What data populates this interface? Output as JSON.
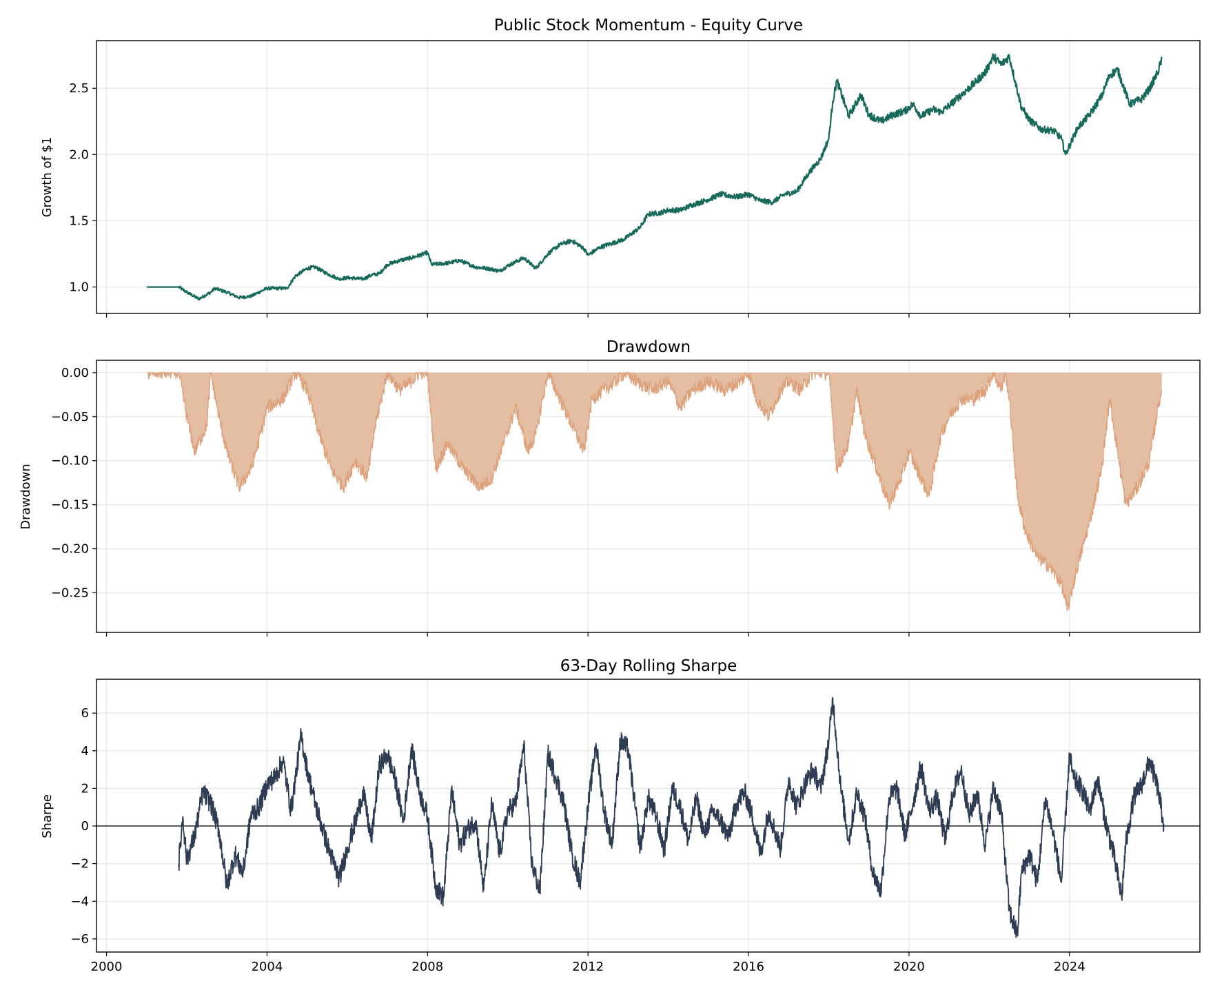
{
  "colors": {
    "equity_line": "#17695a",
    "drawdown_fill": "#e3bea3",
    "drawdown_line": "#dda27c",
    "sharpe_line": "#2d3c52",
    "zero_line": "#000000",
    "grid": "#e6e6e6"
  },
  "chart_data": [
    {
      "type": "line",
      "title": "Public Stock Momentum - Equity Curve",
      "xlabel": "",
      "ylabel": "Growth of $1",
      "xlim": [
        1999.75,
        2027.25
      ],
      "ylim": [
        0.8,
        2.86
      ],
      "grid": true,
      "x_tick_values": [
        2000,
        2004,
        2008,
        2012,
        2016,
        2020,
        2024
      ],
      "x_tick_labels": [
        "",
        "",
        "",
        "",
        "",
        "",
        ""
      ],
      "y_ticks": [
        1.0,
        1.5,
        2.0,
        2.5
      ],
      "y_tick_labels": [
        "1.0",
        "1.5",
        "2.0",
        "2.5"
      ],
      "series": [
        {
          "x": [
            2001.0,
            2001.8,
            2002.0,
            2002.3,
            2002.6,
            2002.7,
            2003.0,
            2003.3,
            2003.6,
            2004.0,
            2004.5,
            2004.7,
            2005.0,
            2005.2,
            2005.5,
            2005.8,
            2006.0,
            2006.4,
            2006.6,
            2006.8,
            2007.0,
            2007.3,
            2007.6,
            2008.0,
            2008.1,
            2008.5,
            2008.8,
            2009.2,
            2009.5,
            2009.8,
            2010.0,
            2010.4,
            2010.7,
            2011.0,
            2011.3,
            2011.6,
            2011.9,
            2012.0,
            2012.3,
            2012.6,
            2012.9,
            2013.3,
            2013.5,
            2013.8,
            2014.0,
            2014.3,
            2014.6,
            2015.0,
            2015.3,
            2015.7,
            2016.0,
            2016.3,
            2016.6,
            2016.9,
            2017.2,
            2017.5,
            2017.8,
            2018.0,
            2018.1,
            2018.2,
            2018.5,
            2018.8,
            2019.0,
            2019.3,
            2019.6,
            2019.9,
            2020.1,
            2020.3,
            2020.6,
            2020.8,
            2021.0,
            2021.3,
            2021.6,
            2021.9,
            2022.1,
            2022.3,
            2022.5,
            2022.8,
            2023.0,
            2023.3,
            2023.6,
            2023.8,
            2023.9,
            2024.2,
            2024.5,
            2024.8,
            2025.0,
            2025.2,
            2025.5,
            2025.8,
            2026.0,
            2026.2,
            2026.3
          ],
          "y": [
            1.0,
            1.0,
            0.96,
            0.91,
            0.96,
            0.99,
            0.96,
            0.92,
            0.93,
            0.99,
            0.99,
            1.08,
            1.14,
            1.15,
            1.1,
            1.06,
            1.07,
            1.06,
            1.09,
            1.1,
            1.17,
            1.2,
            1.22,
            1.26,
            1.17,
            1.18,
            1.2,
            1.15,
            1.14,
            1.12,
            1.16,
            1.22,
            1.14,
            1.25,
            1.32,
            1.35,
            1.29,
            1.24,
            1.3,
            1.33,
            1.36,
            1.45,
            1.55,
            1.56,
            1.58,
            1.58,
            1.62,
            1.66,
            1.7,
            1.68,
            1.7,
            1.65,
            1.64,
            1.7,
            1.72,
            1.86,
            1.97,
            2.12,
            2.4,
            2.56,
            2.29,
            2.45,
            2.3,
            2.25,
            2.3,
            2.33,
            2.38,
            2.29,
            2.34,
            2.32,
            2.37,
            2.45,
            2.53,
            2.62,
            2.74,
            2.68,
            2.74,
            2.36,
            2.26,
            2.19,
            2.18,
            2.12,
            2.0,
            2.2,
            2.3,
            2.44,
            2.6,
            2.64,
            2.38,
            2.42,
            2.5,
            2.62,
            2.72
          ]
        }
      ]
    },
    {
      "type": "area",
      "title": "Drawdown",
      "xlabel": "",
      "ylabel": "Drawdown",
      "xlim": [
        1999.75,
        2027.25
      ],
      "ylim": [
        -0.295,
        0.014
      ],
      "grid": true,
      "x_tick_values": [
        2000,
        2004,
        2008,
        2012,
        2016,
        2020,
        2024
      ],
      "x_tick_labels": [
        "",
        "",
        "",
        "",
        "",
        "",
        ""
      ],
      "y_ticks": [
        0.0,
        -0.05,
        -0.1,
        -0.15,
        -0.2,
        -0.25
      ],
      "y_tick_labels": [
        "0.00",
        "−0.05",
        "−0.10",
        "−0.15",
        "−0.20",
        "−0.25"
      ],
      "series": [
        {
          "x": [
            2001.0,
            2001.8,
            2002.0,
            2002.2,
            2002.5,
            2002.6,
            2002.8,
            2003.0,
            2003.3,
            2003.6,
            2003.9,
            2004.0,
            2004.4,
            2004.7,
            2004.8,
            2005.0,
            2005.3,
            2005.6,
            2005.9,
            2006.2,
            2006.5,
            2006.7,
            2006.9,
            2007.0,
            2007.3,
            2007.6,
            2007.8,
            2008.0,
            2008.2,
            2008.5,
            2008.9,
            2009.3,
            2009.6,
            2009.9,
            2010.2,
            2010.5,
            2010.7,
            2011.0,
            2011.3,
            2011.6,
            2011.9,
            2012.1,
            2012.4,
            2012.7,
            2012.9,
            2013.2,
            2013.6,
            2014.0,
            2014.3,
            2014.6,
            2015.0,
            2015.4,
            2015.8,
            2016.0,
            2016.2,
            2016.5,
            2016.8,
            2017.0,
            2017.3,
            2017.6,
            2017.9,
            2018.0,
            2018.2,
            2018.5,
            2018.7,
            2018.9,
            2019.2,
            2019.5,
            2019.8,
            2020.0,
            2020.2,
            2020.5,
            2020.8,
            2021.0,
            2021.3,
            2021.6,
            2021.9,
            2022.1,
            2022.3,
            2022.4,
            2022.5,
            2022.7,
            2022.9,
            2023.2,
            2023.5,
            2023.8,
            2023.95,
            2024.2,
            2024.5,
            2024.8,
            2025.0,
            2025.2,
            2025.4,
            2025.7,
            2026.0,
            2026.2,
            2026.3
          ],
          "y": [
            0.0,
            0.0,
            -0.05,
            -0.09,
            -0.06,
            0.0,
            -0.05,
            -0.09,
            -0.13,
            -0.11,
            -0.06,
            -0.04,
            -0.03,
            0.0,
            -0.005,
            -0.02,
            -0.07,
            -0.11,
            -0.13,
            -0.1,
            -0.12,
            -0.06,
            -0.02,
            0.0,
            -0.02,
            -0.01,
            0.0,
            0.0,
            -0.11,
            -0.08,
            -0.11,
            -0.13,
            -0.12,
            -0.08,
            -0.04,
            -0.09,
            -0.07,
            0.0,
            -0.03,
            -0.06,
            -0.09,
            -0.03,
            -0.02,
            -0.01,
            0.0,
            -0.01,
            -0.02,
            -0.01,
            -0.04,
            -0.02,
            -0.01,
            -0.02,
            -0.01,
            0.0,
            -0.03,
            -0.05,
            -0.02,
            -0.01,
            -0.02,
            0.0,
            0.0,
            0.0,
            -0.11,
            -0.08,
            -0.02,
            -0.07,
            -0.11,
            -0.15,
            -0.12,
            -0.09,
            -0.11,
            -0.14,
            -0.07,
            -0.05,
            -0.03,
            -0.03,
            -0.02,
            0.0,
            -0.02,
            0.0,
            -0.03,
            -0.14,
            -0.18,
            -0.21,
            -0.22,
            -0.24,
            -0.27,
            -0.22,
            -0.17,
            -0.11,
            -0.03,
            -0.09,
            -0.15,
            -0.13,
            -0.1,
            -0.04,
            -0.02
          ]
        }
      ]
    },
    {
      "type": "line",
      "title": "63-Day Rolling Sharpe",
      "xlabel": "",
      "ylabel": "Sharpe",
      "xlim": [
        1999.75,
        2027.25
      ],
      "ylim": [
        -6.7,
        7.8
      ],
      "grid": true,
      "zero_line": 0,
      "x_tick_values": [
        2000,
        2004,
        2008,
        2012,
        2016,
        2020,
        2024
      ],
      "x_tick_labels": [
        "2000",
        "2004",
        "2008",
        "2012",
        "2016",
        "2020",
        "2024"
      ],
      "y_ticks": [
        6,
        4,
        2,
        0,
        -2,
        -4,
        -6
      ],
      "y_tick_labels": [
        "6",
        "4",
        "2",
        "0",
        "−2",
        "−4",
        "−6"
      ],
      "series": [
        {
          "x": [
            2001.8,
            2001.9,
            2002.0,
            2002.2,
            2002.4,
            2002.6,
            2002.8,
            2003.0,
            2003.2,
            2003.4,
            2003.6,
            2003.8,
            2004.0,
            2004.2,
            2004.4,
            2004.6,
            2004.85,
            2005.0,
            2005.2,
            2005.5,
            2005.8,
            2006.0,
            2006.2,
            2006.4,
            2006.6,
            2006.8,
            2007.0,
            2007.2,
            2007.4,
            2007.6,
            2007.8,
            2008.0,
            2008.2,
            2008.4,
            2008.6,
            2008.8,
            2009.0,
            2009.2,
            2009.4,
            2009.6,
            2009.8,
            2010.0,
            2010.2,
            2010.4,
            2010.6,
            2010.8,
            2011.0,
            2011.2,
            2011.4,
            2011.6,
            2011.8,
            2012.0,
            2012.2,
            2012.4,
            2012.6,
            2012.8,
            2013.0,
            2013.3,
            2013.5,
            2013.7,
            2013.9,
            2014.1,
            2014.3,
            2014.5,
            2014.7,
            2014.9,
            2015.1,
            2015.3,
            2015.5,
            2015.7,
            2015.9,
            2016.1,
            2016.3,
            2016.5,
            2016.8,
            2017.0,
            2017.2,
            2017.4,
            2017.6,
            2017.8,
            2018.0,
            2018.1,
            2018.3,
            2018.5,
            2018.7,
            2018.9,
            2019.1,
            2019.3,
            2019.5,
            2019.7,
            2019.9,
            2020.1,
            2020.3,
            2020.5,
            2020.7,
            2020.9,
            2021.1,
            2021.3,
            2021.5,
            2021.7,
            2021.9,
            2022.1,
            2022.3,
            2022.5,
            2022.7,
            2022.8,
            2023.0,
            2023.2,
            2023.4,
            2023.6,
            2023.8,
            2024.0,
            2024.1,
            2024.3,
            2024.5,
            2024.7,
            2024.9,
            2025.1,
            2025.3,
            2025.4,
            2025.6,
            2025.8,
            2026.0,
            2026.2,
            2026.35
          ],
          "y": [
            -2.0,
            0.5,
            -1.8,
            -0.5,
            1.8,
            1.2,
            -0.2,
            -3.2,
            -1.5,
            -2.5,
            0.6,
            1.0,
            2.2,
            2.6,
            3.5,
            0.8,
            4.8,
            3.0,
            1.2,
            -1.0,
            -2.8,
            -1.2,
            0.2,
            1.8,
            -0.8,
            3.2,
            3.8,
            2.4,
            0.2,
            4.2,
            1.8,
            0.5,
            -3.2,
            -3.8,
            1.9,
            -1.0,
            -0.2,
            0.3,
            -3.4,
            1.2,
            -1.5,
            0.8,
            1.2,
            4.3,
            -2.0,
            -3.5,
            3.8,
            2.6,
            1.2,
            -1.5,
            -3.0,
            1.0,
            4.4,
            0.8,
            -1.0,
            4.5,
            4.1,
            -1.2,
            1.5,
            0.5,
            -1.3,
            2.0,
            1.0,
            -0.8,
            1.5,
            -0.5,
            0.8,
            0.3,
            -0.6,
            1.2,
            1.8,
            0.5,
            -1.5,
            0.8,
            -1.2,
            2.5,
            1.0,
            2.2,
            3.0,
            2.0,
            4.5,
            6.8,
            2.0,
            -0.8,
            1.8,
            0.5,
            -2.5,
            -3.5,
            1.5,
            2.0,
            -0.5,
            1.2,
            3.2,
            0.8,
            1.5,
            -0.8,
            1.8,
            3.0,
            0.5,
            1.8,
            -1.0,
            2.0,
            0.8,
            -4.5,
            -5.8,
            -2.5,
            -1.5,
            -3.0,
            1.5,
            -0.5,
            -3.0,
            3.8,
            2.5,
            2.0,
            0.8,
            2.5,
            0.2,
            -1.5,
            -3.8,
            -1.0,
            1.5,
            2.2,
            3.5,
            2.0,
            0.1
          ]
        }
      ]
    }
  ]
}
